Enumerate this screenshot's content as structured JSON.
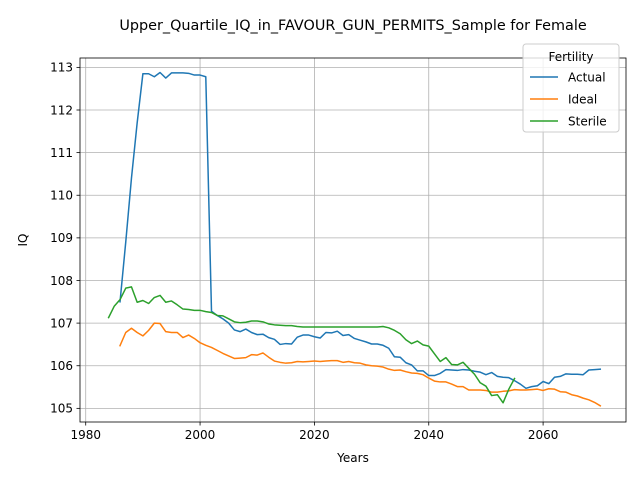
{
  "chart_data": {
    "type": "line",
    "title": "Upper_Quartile_IQ_in_FAVOUR_GUN_PERMITS_Sample for Female",
    "xlabel": "Years",
    "ylabel": "IQ",
    "xlim": [
      1979,
      2074.5
    ],
    "ylim": [
      104.68,
      113.22
    ],
    "xticks": [
      1980,
      2000,
      2020,
      2040,
      2060
    ],
    "yticks": [
      105,
      106,
      107,
      108,
      109,
      110,
      111,
      112,
      113
    ],
    "grid": true,
    "legend": {
      "title": "Fertility",
      "placement": "top-right"
    },
    "series": [
      {
        "name": "Actual",
        "color": "#1f77b4",
        "points": [
          [
            1986,
            107.5
          ],
          [
            1987,
            108.9
          ],
          [
            1988,
            110.4
          ],
          [
            1989,
            111.7
          ],
          [
            1990,
            112.85
          ],
          [
            1991,
            112.85
          ],
          [
            1992,
            112.78
          ],
          [
            1993,
            112.88
          ],
          [
            1994,
            112.75
          ],
          [
            1995,
            112.87
          ],
          [
            1996,
            112.87
          ],
          [
            1997,
            112.87
          ],
          [
            1998,
            112.86
          ],
          [
            1999,
            112.82
          ],
          [
            2000,
            112.82
          ],
          [
            2001,
            112.78
          ],
          [
            2002,
            107.28
          ],
          [
            2003,
            107.18
          ],
          [
            2004,
            107.1
          ],
          [
            2005,
            107.0
          ],
          [
            2006,
            106.84
          ],
          [
            2007,
            106.8
          ],
          [
            2008,
            106.86
          ],
          [
            2009,
            106.78
          ],
          [
            2010,
            106.73
          ],
          [
            2011,
            106.74
          ],
          [
            2012,
            106.66
          ],
          [
            2013,
            106.62
          ],
          [
            2014,
            106.5
          ],
          [
            2015,
            106.52
          ],
          [
            2016,
            106.51
          ],
          [
            2017,
            106.67
          ],
          [
            2018,
            106.72
          ],
          [
            2019,
            106.72
          ],
          [
            2020,
            106.68
          ],
          [
            2021,
            106.65
          ],
          [
            2022,
            106.78
          ],
          [
            2023,
            106.77
          ],
          [
            2024,
            106.81
          ],
          [
            2025,
            106.71
          ],
          [
            2026,
            106.73
          ],
          [
            2027,
            106.64
          ],
          [
            2028,
            106.6
          ],
          [
            2029,
            106.56
          ],
          [
            2030,
            106.51
          ],
          [
            2031,
            106.51
          ],
          [
            2032,
            106.48
          ],
          [
            2033,
            106.41
          ],
          [
            2034,
            106.21
          ],
          [
            2035,
            106.2
          ],
          [
            2036,
            106.07
          ],
          [
            2037,
            106.02
          ],
          [
            2038,
            105.88
          ],
          [
            2039,
            105.88
          ],
          [
            2040,
            105.77
          ],
          [
            2041,
            105.77
          ],
          [
            2042,
            105.82
          ],
          [
            2043,
            105.91
          ],
          [
            2044,
            105.9
          ],
          [
            2045,
            105.89
          ],
          [
            2046,
            105.91
          ],
          [
            2047,
            105.9
          ],
          [
            2048,
            105.87
          ],
          [
            2049,
            105.85
          ],
          [
            2050,
            105.79
          ],
          [
            2051,
            105.84
          ],
          [
            2052,
            105.75
          ],
          [
            2053,
            105.73
          ],
          [
            2054,
            105.72
          ],
          [
            2055,
            105.65
          ],
          [
            2056,
            105.57
          ],
          [
            2057,
            105.47
          ],
          [
            2058,
            105.51
          ],
          [
            2059,
            105.53
          ],
          [
            2060,
            105.63
          ],
          [
            2061,
            105.58
          ],
          [
            2062,
            105.73
          ],
          [
            2063,
            105.75
          ],
          [
            2064,
            105.81
          ],
          [
            2065,
            105.8
          ],
          [
            2066,
            105.8
          ],
          [
            2067,
            105.79
          ],
          [
            2068,
            105.9
          ],
          [
            2069,
            105.91
          ],
          [
            2070,
            105.92
          ]
        ]
      },
      {
        "name": "Ideal",
        "color": "#ff7f0e",
        "points": [
          [
            1986,
            106.47
          ],
          [
            1987,
            106.78
          ],
          [
            1988,
            106.88
          ],
          [
            1989,
            106.78
          ],
          [
            1990,
            106.7
          ],
          [
            1991,
            106.83
          ],
          [
            1992,
            107.0
          ],
          [
            1993,
            106.99
          ],
          [
            1994,
            106.8
          ],
          [
            1995,
            106.78
          ],
          [
            1996,
            106.78
          ],
          [
            1997,
            106.66
          ],
          [
            1998,
            106.72
          ],
          [
            1999,
            106.64
          ],
          [
            2000,
            106.54
          ],
          [
            2001,
            106.48
          ],
          [
            2002,
            106.43
          ],
          [
            2003,
            106.36
          ],
          [
            2004,
            106.29
          ],
          [
            2005,
            106.23
          ],
          [
            2006,
            106.17
          ],
          [
            2007,
            106.18
          ],
          [
            2008,
            106.19
          ],
          [
            2009,
            106.26
          ],
          [
            2010,
            106.25
          ],
          [
            2011,
            106.3
          ],
          [
            2012,
            106.2
          ],
          [
            2013,
            106.11
          ],
          [
            2014,
            106.08
          ],
          [
            2015,
            106.06
          ],
          [
            2016,
            106.07
          ],
          [
            2017,
            106.1
          ],
          [
            2018,
            106.09
          ],
          [
            2019,
            106.1
          ],
          [
            2020,
            106.11
          ],
          [
            2021,
            106.1
          ],
          [
            2022,
            106.11
          ],
          [
            2023,
            106.12
          ],
          [
            2024,
            106.12
          ],
          [
            2025,
            106.08
          ],
          [
            2026,
            106.1
          ],
          [
            2027,
            106.07
          ],
          [
            2028,
            106.06
          ],
          [
            2029,
            106.02
          ],
          [
            2030,
            106.0
          ],
          [
            2031,
            105.99
          ],
          [
            2032,
            105.97
          ],
          [
            2033,
            105.92
          ],
          [
            2034,
            105.89
          ],
          [
            2035,
            105.9
          ],
          [
            2036,
            105.86
          ],
          [
            2037,
            105.83
          ],
          [
            2038,
            105.82
          ],
          [
            2039,
            105.79
          ],
          [
            2040,
            105.71
          ],
          [
            2041,
            105.64
          ],
          [
            2042,
            105.62
          ],
          [
            2043,
            105.62
          ],
          [
            2044,
            105.57
          ],
          [
            2045,
            105.51
          ],
          [
            2046,
            105.51
          ],
          [
            2047,
            105.43
          ],
          [
            2048,
            105.43
          ],
          [
            2049,
            105.43
          ],
          [
            2050,
            105.42
          ],
          [
            2051,
            105.38
          ],
          [
            2052,
            105.38
          ],
          [
            2053,
            105.4
          ],
          [
            2054,
            105.41
          ],
          [
            2055,
            105.44
          ],
          [
            2056,
            105.43
          ],
          [
            2057,
            105.43
          ],
          [
            2058,
            105.44
          ],
          [
            2059,
            105.45
          ],
          [
            2060,
            105.42
          ],
          [
            2061,
            105.46
          ],
          [
            2062,
            105.45
          ],
          [
            2063,
            105.39
          ],
          [
            2064,
            105.38
          ],
          [
            2065,
            105.32
          ],
          [
            2066,
            105.29
          ],
          [
            2067,
            105.24
          ],
          [
            2068,
            105.2
          ],
          [
            2069,
            105.14
          ],
          [
            2070,
            105.06
          ]
        ]
      },
      {
        "name": "Sterile",
        "color": "#2ca02c",
        "points": [
          [
            1984,
            107.13
          ],
          [
            1985,
            107.4
          ],
          [
            1986,
            107.55
          ],
          [
            1987,
            107.82
          ],
          [
            1988,
            107.85
          ],
          [
            1989,
            107.49
          ],
          [
            1990,
            107.53
          ],
          [
            1991,
            107.46
          ],
          [
            1992,
            107.6
          ],
          [
            1993,
            107.65
          ],
          [
            1994,
            107.49
          ],
          [
            1995,
            107.52
          ],
          [
            1996,
            107.43
          ],
          [
            1997,
            107.33
          ],
          [
            1998,
            107.32
          ],
          [
            1999,
            107.3
          ],
          [
            2000,
            107.3
          ],
          [
            2001,
            107.27
          ],
          [
            2002,
            107.25
          ],
          [
            2003,
            107.18
          ],
          [
            2004,
            107.17
          ],
          [
            2005,
            107.1
          ],
          [
            2006,
            107.03
          ],
          [
            2007,
            107.01
          ],
          [
            2008,
            107.02
          ],
          [
            2009,
            107.05
          ],
          [
            2010,
            107.05
          ],
          [
            2011,
            107.03
          ],
          [
            2012,
            106.98
          ],
          [
            2013,
            106.96
          ],
          [
            2014,
            106.95
          ],
          [
            2015,
            106.94
          ],
          [
            2016,
            106.94
          ],
          [
            2017,
            106.92
          ],
          [
            2018,
            106.91
          ],
          [
            2019,
            106.91
          ],
          [
            2020,
            106.91
          ],
          [
            2021,
            106.91
          ],
          [
            2022,
            106.91
          ],
          [
            2023,
            106.91
          ],
          [
            2024,
            106.91
          ],
          [
            2025,
            106.91
          ],
          [
            2026,
            106.91
          ],
          [
            2027,
            106.91
          ],
          [
            2028,
            106.91
          ],
          [
            2029,
            106.91
          ],
          [
            2030,
            106.91
          ],
          [
            2031,
            106.91
          ],
          [
            2032,
            106.92
          ],
          [
            2033,
            106.89
          ],
          [
            2034,
            106.83
          ],
          [
            2035,
            106.75
          ],
          [
            2036,
            106.61
          ],
          [
            2037,
            106.52
          ],
          [
            2038,
            106.58
          ],
          [
            2039,
            106.49
          ],
          [
            2040,
            106.46
          ],
          [
            2041,
            106.28
          ],
          [
            2042,
            106.1
          ],
          [
            2043,
            106.19
          ],
          [
            2044,
            106.03
          ],
          [
            2045,
            106.02
          ],
          [
            2046,
            106.08
          ],
          [
            2047,
            105.94
          ],
          [
            2048,
            105.8
          ],
          [
            2049,
            105.6
          ],
          [
            2050,
            105.52
          ],
          [
            2051,
            105.3
          ],
          [
            2052,
            105.32
          ],
          [
            2053,
            105.13
          ],
          [
            2054,
            105.45
          ],
          [
            2055,
            105.7
          ]
        ]
      }
    ]
  }
}
